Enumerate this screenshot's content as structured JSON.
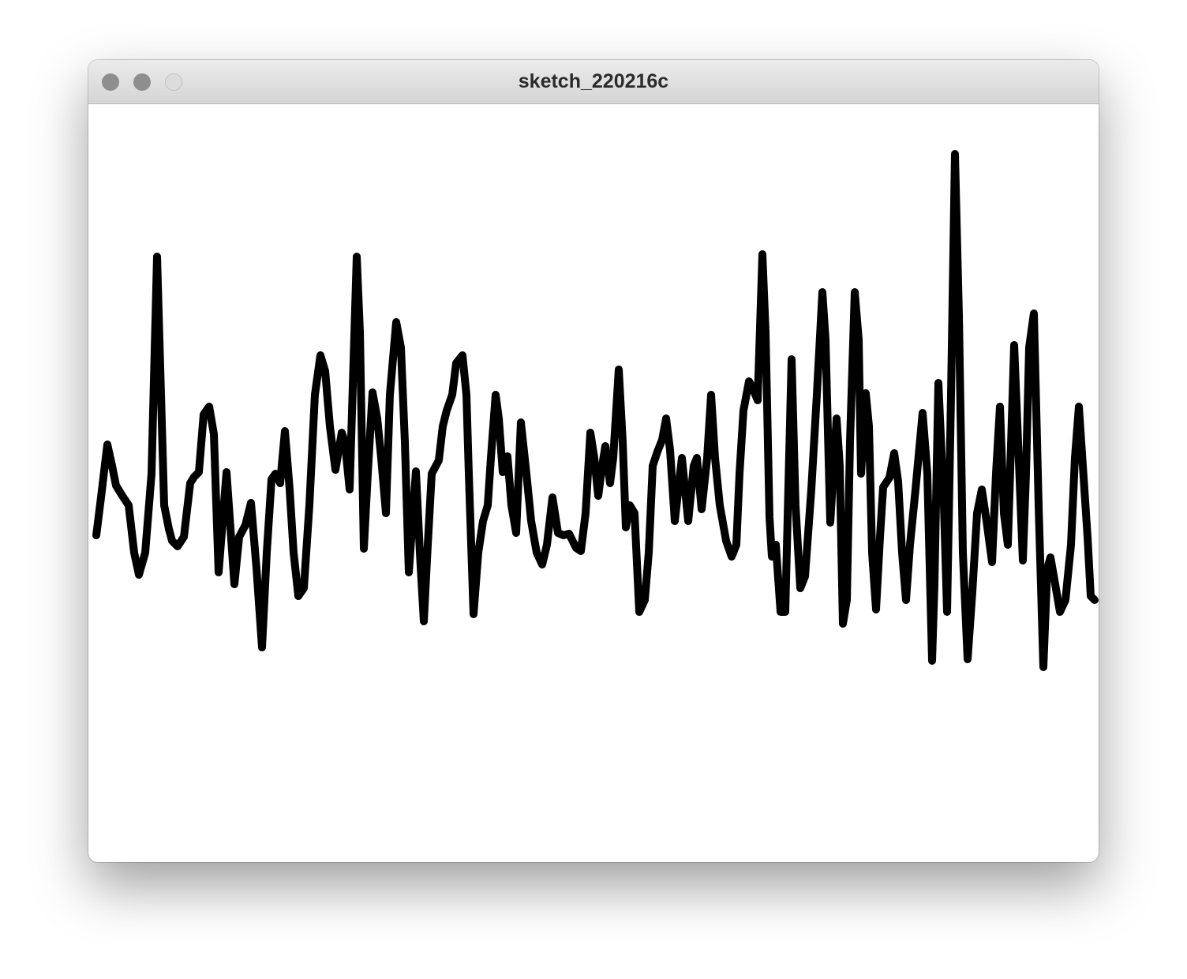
{
  "window": {
    "title": "sketch_220216c"
  }
}
